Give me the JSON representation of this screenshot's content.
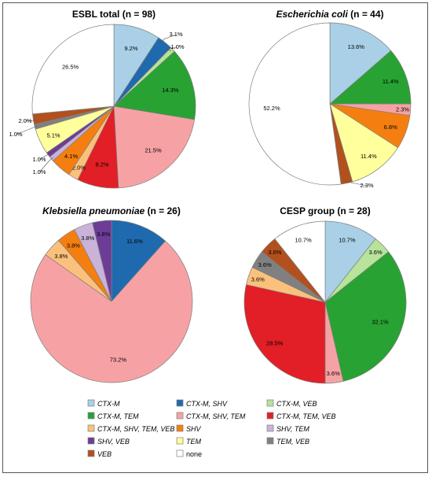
{
  "colors": {
    "CTX-M": "#a9d0e6",
    "CTX-M, SHV": "#1f6aae",
    "CTX-M, VEB": "#b7e39a",
    "CTX-M, TEM": "#28a233",
    "CTX-M, SHV, TEM": "#f6a2a4",
    "CTX-M, TEM, VEB": "#e21e26",
    "CTX-M, SHV, TEM, VEB": "#fbc17c",
    "SHV": "#f47f10",
    "SHV, TEM": "#c9b3d9",
    "SHV, VEB": "#6d3c97",
    "TEM": "#ffff9c",
    "TEM, VEB": "#808080",
    "VEB": "#b2501e",
    "none": "#ffffff"
  },
  "legend": {
    "items": [
      {
        "label": "CTX-M",
        "italic": true
      },
      {
        "label": "CTX-M, SHV",
        "italic": true
      },
      {
        "label": "CTX-M, VEB",
        "italic": true
      },
      {
        "label": "CTX-M, TEM",
        "italic": true
      },
      {
        "label": "CTX-M, SHV, TEM",
        "italic": true
      },
      {
        "label": "CTX-M, TEM, VEB",
        "italic": true
      },
      {
        "label": "CTX-M, SHV, TEM, VEB",
        "italic": true
      },
      {
        "label": "SHV",
        "italic": true
      },
      {
        "label": "SHV, TEM",
        "italic": true
      },
      {
        "label": "SHV, VEB",
        "italic": true
      },
      {
        "label": "TEM",
        "italic": true
      },
      {
        "label": "TEM, VEB",
        "italic": true
      },
      {
        "label": "VEB",
        "italic": true
      },
      {
        "label": "none",
        "italic": false
      }
    ]
  },
  "chart_data": [
    {
      "type": "pie",
      "title_parts": [
        {
          "text": "ESBL total (n = 98)",
          "italic": false
        }
      ],
      "slices": [
        {
          "category": "CTX-M",
          "value": 9.2,
          "label": "9.2%"
        },
        {
          "category": "CTX-M, SHV",
          "value": 3.1,
          "label": "3.1%"
        },
        {
          "category": "CTX-M, VEB",
          "value": 1.0,
          "label": "1.0%"
        },
        {
          "category": "CTX-M, TEM",
          "value": 14.3,
          "label": "14.3%"
        },
        {
          "category": "CTX-M, SHV, TEM",
          "value": 21.5,
          "label": "21.5%"
        },
        {
          "category": "CTX-M, TEM, VEB",
          "value": 8.2,
          "label": "8.2%"
        },
        {
          "category": "CTX-M, SHV, TEM, VEB",
          "value": 2.0,
          "label": "2.0%"
        },
        {
          "category": "SHV",
          "value": 4.1,
          "label": "4.1%"
        },
        {
          "category": "SHV, TEM",
          "value": 1.0,
          "label": "1.0%"
        },
        {
          "category": "SHV, VEB",
          "value": 1.0,
          "label": "1.0%"
        },
        {
          "category": "TEM",
          "value": 5.1,
          "label": "5.1%"
        },
        {
          "category": "TEM, VEB",
          "value": 1.0,
          "label": "1.0%"
        },
        {
          "category": "VEB",
          "value": 2.0,
          "label": "2.0%"
        },
        {
          "category": "none",
          "value": 26.5,
          "label": "26.5%"
        }
      ]
    },
    {
      "type": "pie",
      "title_parts": [
        {
          "text": "Escherichia coli",
          "italic": true
        },
        {
          "text": " (n = 44)",
          "italic": false
        }
      ],
      "slices": [
        {
          "category": "CTX-M",
          "value": 13.6,
          "label": "13.6%"
        },
        {
          "category": "CTX-M, TEM",
          "value": 11.4,
          "label": "11.4%"
        },
        {
          "category": "CTX-M, SHV, TEM",
          "value": 2.3,
          "label": "2.3%"
        },
        {
          "category": "SHV",
          "value": 6.8,
          "label": "6.8%"
        },
        {
          "category": "TEM",
          "value": 11.4,
          "label": "11.4%"
        },
        {
          "category": "VEB",
          "value": 2.3,
          "label": "2.3%"
        },
        {
          "category": "none",
          "value": 52.2,
          "label": "52.2%"
        }
      ]
    },
    {
      "type": "pie",
      "title_parts": [
        {
          "text": "Klebsiella pneumoniae",
          "italic": true
        },
        {
          "text": " (n = 26)",
          "italic": false
        }
      ],
      "slices": [
        {
          "category": "CTX-M, SHV",
          "value": 11.6,
          "label": "11.6%"
        },
        {
          "category": "CTX-M, SHV, TEM",
          "value": 73.2,
          "label": "73.2%"
        },
        {
          "category": "CTX-M, SHV, TEM, VEB",
          "value": 3.8,
          "label": "3.8%"
        },
        {
          "category": "SHV",
          "value": 3.8,
          "label": "3.8%"
        },
        {
          "category": "SHV, TEM",
          "value": 3.8,
          "label": "3.8%"
        },
        {
          "category": "SHV, VEB",
          "value": 3.8,
          "label": "3.8%"
        }
      ]
    },
    {
      "type": "pie",
      "title_parts": [
        {
          "text": "CESP group (n = 28)",
          "italic": false
        }
      ],
      "slices": [
        {
          "category": "CTX-M",
          "value": 10.7,
          "label": "10.7%"
        },
        {
          "category": "CTX-M, VEB",
          "value": 3.6,
          "label": "3.6%"
        },
        {
          "category": "CTX-M, TEM",
          "value": 32.1,
          "label": "32.1%"
        },
        {
          "category": "CTX-M, SHV, TEM",
          "value": 3.6,
          "label": "3.6%"
        },
        {
          "category": "CTX-M, TEM, VEB",
          "value": 28.5,
          "label": "28.5%"
        },
        {
          "category": "CTX-M, SHV, TEM, VEB",
          "value": 3.6,
          "label": "3.6%"
        },
        {
          "category": "TEM, VEB",
          "value": 3.6,
          "label": "3.6%"
        },
        {
          "category": "VEB",
          "value": 3.6,
          "label": "3.6%"
        },
        {
          "category": "none",
          "value": 10.7,
          "label": "10.7%"
        }
      ]
    }
  ]
}
